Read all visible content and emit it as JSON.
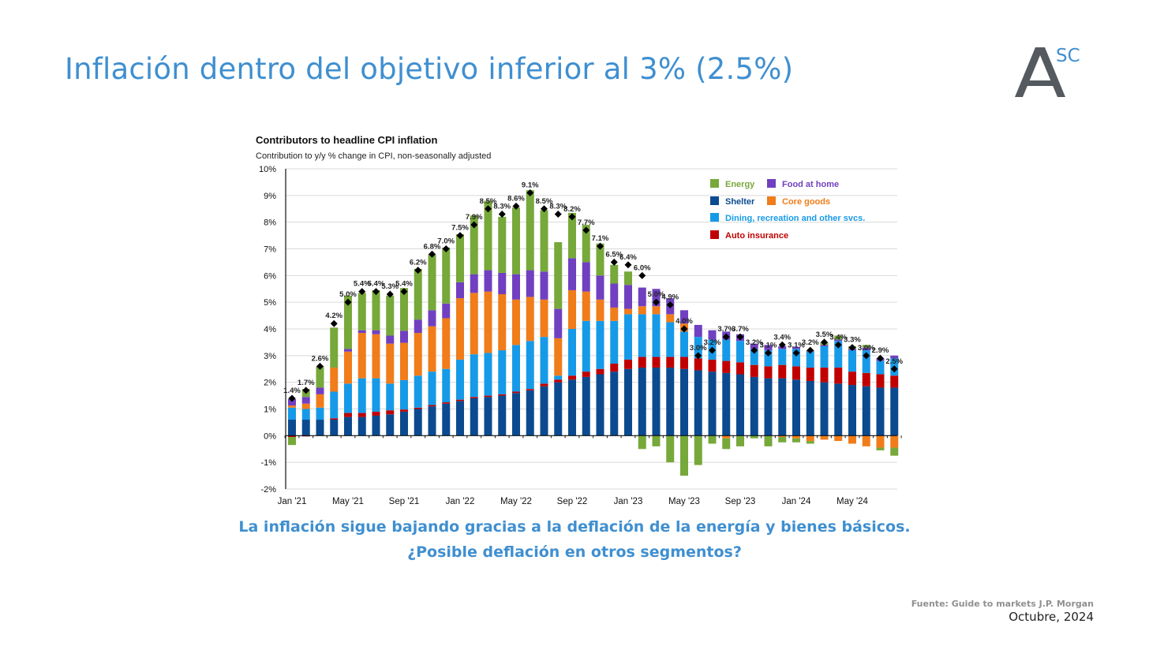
{
  "slide": {
    "title": "Inflación dentro del objetivo inferior al 3% (2.5%)",
    "subtitle_line1": "La inflación sigue bajando gracias a la deflación de la energía y bienes básicos.",
    "subtitle_line2": "¿Posible deflación en otros segmentos?",
    "source": "Fuente: Guide to markets J.P. Morgan",
    "date": "Octubre, 2024",
    "logo_letter": "A",
    "logo_sup": "SC",
    "title_color": "#3f8fd0"
  },
  "chart_data": {
    "type": "bar",
    "stacked": true,
    "title": "Contributors to headline CPI inflation",
    "subtitle": "Contribution to y/y % change in CPI, non-seasonally adjusted",
    "ylim": [
      -2,
      10
    ],
    "yticks": [
      -2,
      -1,
      0,
      1,
      2,
      3,
      4,
      5,
      6,
      7,
      8,
      9,
      10
    ],
    "ytick_labels": [
      "-2%",
      "-1%",
      "0%",
      "1%",
      "2%",
      "3%",
      "4%",
      "5%",
      "6%",
      "7%",
      "8%",
      "9%",
      "10%"
    ],
    "grid": true,
    "legend_position": "top-right",
    "xtick_labels": [
      {
        "index": 0,
        "label": "Jan '21"
      },
      {
        "index": 4,
        "label": "May '21"
      },
      {
        "index": 8,
        "label": "Sep '21"
      },
      {
        "index": 12,
        "label": "Jan '22"
      },
      {
        "index": 16,
        "label": "May '22"
      },
      {
        "index": 20,
        "label": "Sep '22"
      },
      {
        "index": 24,
        "label": "Jan '23"
      },
      {
        "index": 28,
        "label": "May '23"
      },
      {
        "index": 32,
        "label": "Sep '23"
      },
      {
        "index": 36,
        "label": "Jan '24"
      },
      {
        "index": 40,
        "label": "May '24"
      }
    ],
    "categories": [
      "2021-01",
      "2021-02",
      "2021-03",
      "2021-04",
      "2021-05",
      "2021-06",
      "2021-07",
      "2021-08",
      "2021-09",
      "2021-10",
      "2021-11",
      "2021-12",
      "2022-01",
      "2022-02",
      "2022-03",
      "2022-04",
      "2022-05",
      "2022-06",
      "2022-07",
      "2022-08",
      "2022-09",
      "2022-10",
      "2022-11",
      "2022-12",
      "2023-01",
      "2023-02",
      "2023-03",
      "2023-04",
      "2023-05",
      "2023-06",
      "2023-07",
      "2023-08",
      "2023-09",
      "2023-10",
      "2023-11",
      "2023-12",
      "2024-01",
      "2024-02",
      "2024-03",
      "2024-04",
      "2024-05",
      "2024-06",
      "2024-07",
      "2024-08"
    ],
    "series": [
      {
        "name": "Shelter",
        "color": "#0b4a8f",
        "values": [
          0.6,
          0.6,
          0.6,
          0.6,
          0.7,
          0.7,
          0.75,
          0.8,
          0.9,
          1.0,
          1.1,
          1.2,
          1.3,
          1.4,
          1.45,
          1.5,
          1.6,
          1.7,
          1.85,
          2.0,
          2.1,
          2.2,
          2.3,
          2.4,
          2.5,
          2.55,
          2.55,
          2.55,
          2.5,
          2.45,
          2.4,
          2.35,
          2.3,
          2.2,
          2.15,
          2.15,
          2.1,
          2.05,
          2.0,
          1.95,
          1.9,
          1.85,
          1.8,
          1.8
        ]
      },
      {
        "name": "Auto insurance",
        "color": "#c00000",
        "values": [
          -0.05,
          -0.03,
          0.0,
          0.05,
          0.15,
          0.15,
          0.15,
          0.15,
          0.08,
          0.05,
          0.05,
          0.05,
          0.05,
          0.05,
          0.05,
          0.05,
          0.05,
          0.05,
          0.1,
          0.1,
          0.15,
          0.2,
          0.2,
          0.3,
          0.35,
          0.4,
          0.4,
          0.4,
          0.45,
          0.45,
          0.45,
          0.45,
          0.45,
          0.45,
          0.45,
          0.5,
          0.5,
          0.5,
          0.55,
          0.6,
          0.5,
          0.5,
          0.5,
          0.45
        ]
      },
      {
        "name": "Dining, recreation and other svcs.",
        "color": "#169ae8",
        "values": [
          0.45,
          0.4,
          0.45,
          1.0,
          1.1,
          1.3,
          1.25,
          1.0,
          1.1,
          1.2,
          1.25,
          1.25,
          1.5,
          1.6,
          1.6,
          1.65,
          1.75,
          1.8,
          1.75,
          0.15,
          1.75,
          1.9,
          1.8,
          1.6,
          1.7,
          1.6,
          1.6,
          1.3,
          0.95,
          0.8,
          0.75,
          0.8,
          0.8,
          0.6,
          0.6,
          0.6,
          0.65,
          0.6,
          0.8,
          1.0,
          0.8,
          0.85,
          0.5,
          0.65
        ]
      },
      {
        "name": "Core goods",
        "color": "#f07c1a",
        "values": [
          0.08,
          0.2,
          0.5,
          0.9,
          1.2,
          1.7,
          1.65,
          1.5,
          1.4,
          1.6,
          1.7,
          1.9,
          2.3,
          2.3,
          2.3,
          2.1,
          1.7,
          1.65,
          1.4,
          1.4,
          1.45,
          1.1,
          0.8,
          0.5,
          0.2,
          0.3,
          0.3,
          0.3,
          0.3,
          0.0,
          0.0,
          -0.1,
          0.0,
          0.0,
          0.0,
          -0.05,
          -0.1,
          -0.2,
          -0.15,
          -0.2,
          -0.3,
          -0.4,
          -0.45,
          -0.45
        ]
      },
      {
        "name": "Food at home",
        "color": "#7040c0",
        "values": [
          0.25,
          0.25,
          0.25,
          0.0,
          0.1,
          0.1,
          0.15,
          0.3,
          0.45,
          0.5,
          0.6,
          0.55,
          0.6,
          0.7,
          0.8,
          0.8,
          0.95,
          1.0,
          1.05,
          1.1,
          1.2,
          1.1,
          0.9,
          0.9,
          0.9,
          0.7,
          0.65,
          0.6,
          0.5,
          0.45,
          0.35,
          0.3,
          0.25,
          0.2,
          0.2,
          0.1,
          0.08,
          0.05,
          0.05,
          0.05,
          0.05,
          0.1,
          0.1,
          0.1
        ]
      },
      {
        "name": "Energy",
        "color": "#77a83a",
        "values": [
          -0.3,
          0.3,
          0.8,
          1.5,
          2.0,
          1.4,
          1.5,
          1.5,
          1.6,
          1.9,
          2.1,
          2.1,
          1.8,
          2.2,
          2.6,
          2.1,
          2.5,
          3.0,
          2.3,
          2.5,
          1.7,
          1.4,
          1.2,
          0.7,
          0.5,
          -0.5,
          -0.4,
          -1.0,
          -1.5,
          -1.1,
          -0.3,
          -0.4,
          -0.4,
          -0.1,
          -0.4,
          -0.2,
          -0.15,
          -0.1,
          0.1,
          0.15,
          0.1,
          0.1,
          -0.1,
          -0.3
        ]
      }
    ],
    "headline": [
      1.4,
      1.7,
      2.6,
      4.2,
      5.0,
      5.4,
      5.4,
      5.3,
      5.4,
      6.2,
      6.8,
      7.0,
      7.5,
      7.9,
      8.5,
      8.3,
      8.6,
      9.1,
      8.5,
      8.3,
      8.2,
      7.7,
      7.1,
      6.5,
      6.4,
      6.0,
      5.0,
      4.9,
      4.0,
      3.0,
      3.2,
      3.7,
      3.7,
      3.2,
      3.1,
      3.4,
      3.1,
      3.2,
      3.5,
      3.4,
      3.3,
      3.0,
      2.9,
      2.5
    ],
    "headline_labels": [
      "1.4%",
      "1.7%",
      "2.6%",
      "4.2%",
      "5.0%",
      "5.4%",
      "5.4%",
      "5.3%",
      "5.4%",
      "6.2%",
      "6.8%",
      "7.0%",
      "7.5%",
      "7.9%",
      "8.5%",
      "8.3%",
      "8.6%",
      "9.1%",
      "8.5%",
      "8.3%",
      "8.2%",
      "7.7%",
      "7.1%",
      "6.5%",
      "6.4%",
      "6.0%",
      "5.0%",
      "4.9%",
      "4.0%",
      "3.0%",
      "3.2%",
      "3.7%",
      "3.7%",
      "3.2%",
      "3.1%",
      "3.4%",
      "3.1%",
      "3.2%",
      "3.5%",
      "3.4%",
      "3.3%",
      "3.0%",
      "2.9%",
      "2.5%"
    ],
    "legend": [
      {
        "name": "Energy",
        "color": "#77a83a",
        "text_color": "#77a83a"
      },
      {
        "name": "Food at home",
        "color": "#7040c0",
        "text_color": "#7040c0"
      },
      {
        "name": "Shelter",
        "color": "#0b4a8f",
        "text_color": "#0b4a8f"
      },
      {
        "name": "Core goods",
        "color": "#f07c1a",
        "text_color": "#f07c1a"
      },
      {
        "name": "Dining,  recreation and other svcs.",
        "color": "#169ae8",
        "text_color": "#169ae8"
      },
      {
        "name": "Auto insurance",
        "color": "#c00000",
        "text_color": "#c00000"
      }
    ]
  }
}
